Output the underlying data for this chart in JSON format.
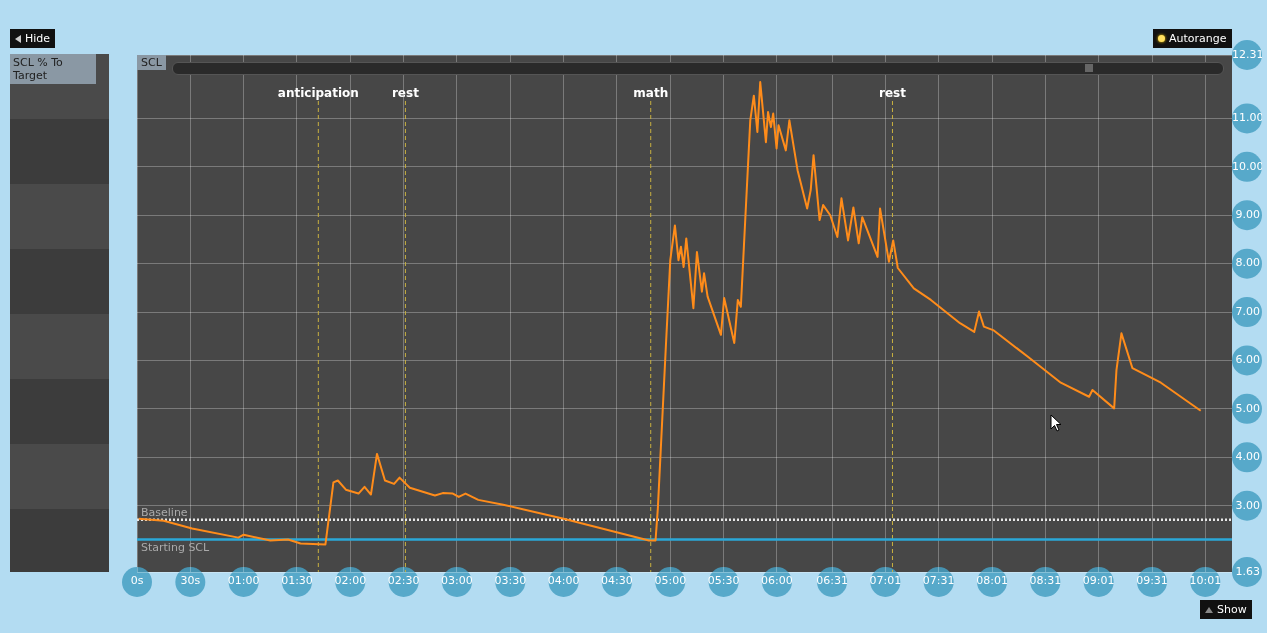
{
  "chart_data": {
    "type": "line",
    "ylabel": "SCL",
    "annotations": [
      "Hide",
      "SCL % To Target",
      "Autorange",
      "Show"
    ],
    "xlim": [
      0,
      616
    ],
    "ylim": [
      1.63,
      12.31
    ],
    "xticks": [
      {
        "value": 0,
        "label": "0s"
      },
      {
        "value": 30,
        "label": "30s"
      },
      {
        "value": 60,
        "label": "01:00"
      },
      {
        "value": 90,
        "label": "01:30"
      },
      {
        "value": 120,
        "label": "02:00"
      },
      {
        "value": 150,
        "label": "02:30"
      },
      {
        "value": 180,
        "label": "03:00"
      },
      {
        "value": 210,
        "label": "03:30"
      },
      {
        "value": 240,
        "label": "04:00"
      },
      {
        "value": 270,
        "label": "04:30"
      },
      {
        "value": 300,
        "label": "05:00"
      },
      {
        "value": 330,
        "label": "05:30"
      },
      {
        "value": 360,
        "label": "06:00"
      },
      {
        "value": 391,
        "label": "06:31"
      },
      {
        "value": 421,
        "label": "07:01"
      },
      {
        "value": 451,
        "label": "07:31"
      },
      {
        "value": 481,
        "label": "08:01"
      },
      {
        "value": 511,
        "label": "08:31"
      },
      {
        "value": 541,
        "label": "09:01"
      },
      {
        "value": 571,
        "label": "09:31"
      },
      {
        "value": 601,
        "label": "10:01"
      }
    ],
    "yticks": [
      {
        "value": 1.63,
        "label": "1.63"
      },
      {
        "value": 3,
        "label": "3.00"
      },
      {
        "value": 4,
        "label": "4.00"
      },
      {
        "value": 5,
        "label": "5.00"
      },
      {
        "value": 6,
        "label": "6.00"
      },
      {
        "value": 7,
        "label": "7.00"
      },
      {
        "value": 8,
        "label": "8.00"
      },
      {
        "value": 9,
        "label": "9.00"
      },
      {
        "value": 10,
        "label": "10.00"
      },
      {
        "value": 11,
        "label": "11.00"
      },
      {
        "value": 12.31,
        "label": "12.31"
      }
    ],
    "grid": true,
    "marker": "none",
    "ref_lines": [
      {
        "axis": "x",
        "value": 102,
        "label": "anticipation",
        "color": "#c8b040",
        "line_style": "dashed"
      },
      {
        "axis": "x",
        "value": 151,
        "label": "rest",
        "color": "#c8b040",
        "line_style": "dashed"
      },
      {
        "axis": "x",
        "value": 289,
        "label": "math",
        "color": "#c8b040",
        "line_style": "dashed"
      },
      {
        "axis": "x",
        "value": 425,
        "label": "rest",
        "color": "#c8b040",
        "line_style": "dashed"
      },
      {
        "axis": "y",
        "value": 2.71,
        "label": "Baseline",
        "color": "#e8e8e8",
        "line_style": "dotted"
      },
      {
        "axis": "y",
        "value": 2.3,
        "label": "Starting SCL",
        "color": "#2aa8d8",
        "line_style": "solid"
      }
    ],
    "series": [
      {
        "color": "#ff8c1a",
        "x": [
          1,
          15,
          31,
          57,
          60,
          75,
          85,
          92,
          106,
          110.5,
          113,
          117.5,
          124.6,
          128,
          131.6,
          135,
          139.5,
          144.6,
          147.7,
          153.5,
          167.6,
          172,
          177.7,
          181,
          184.8,
          192,
          206,
          240,
          288,
          291.7,
          293,
          297.5,
          300,
          302.6,
          304.6,
          306,
          307.5,
          309,
          313,
          315,
          317.8,
          319,
          321,
          328.5,
          330.3,
          336,
          338,
          339.7,
          345,
          347,
          349,
          350.6,
          353.8,
          355,
          356.6,
          357.9,
          359.8,
          360.9,
          365,
          367,
          371.6,
          377,
          379,
          380.6,
          384,
          386,
          390,
          394,
          396.3,
          400,
          403,
          406,
          408,
          416.6,
          418,
          423,
          425.4,
          428,
          437,
          446.6,
          463,
          471,
          473.7,
          476.4,
          482,
          501,
          519.7,
          535.6,
          537.5,
          549.7,
          551,
          553.8,
          560,
          576,
          598.4
        ],
        "values": [
          2.73,
          2.69,
          2.53,
          2.34,
          2.4,
          2.28,
          2.3,
          2.22,
          2.2,
          3.48,
          3.52,
          3.33,
          3.25,
          3.39,
          3.23,
          4.07,
          3.52,
          3.45,
          3.58,
          3.37,
          3.21,
          3.26,
          3.25,
          3.18,
          3.25,
          3.12,
          3.02,
          2.73,
          2.28,
          2.28,
          2.94,
          6.28,
          8.07,
          8.79,
          8.07,
          8.35,
          7.93,
          8.52,
          7.08,
          8.24,
          7.42,
          7.8,
          7.32,
          6.53,
          7.29,
          6.36,
          7.25,
          7.11,
          10.96,
          11.47,
          10.72,
          11.75,
          10.51,
          11.13,
          10.82,
          11.1,
          10.38,
          10.86,
          10.34,
          10.96,
          9.93,
          9.14,
          9.52,
          10.24,
          8.9,
          9.21,
          9.0,
          8.55,
          9.35,
          8.48,
          9.16,
          8.42,
          8.96,
          8.14,
          9.14,
          8.04,
          8.48,
          7.91,
          7.49,
          7.25,
          6.77,
          6.59,
          7.01,
          6.7,
          6.62,
          6.08,
          5.54,
          5.25,
          5.39,
          5.01,
          5.8,
          6.56,
          5.84,
          5.54,
          4.96
        ]
      }
    ]
  }
}
